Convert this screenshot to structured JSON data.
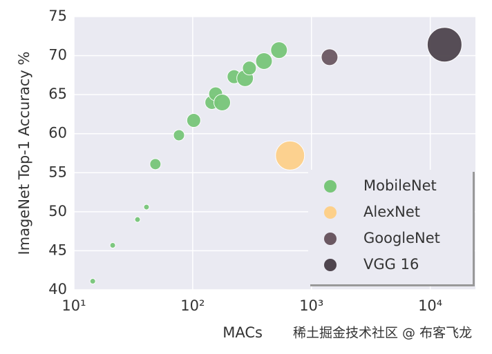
{
  "chart_data": {
    "type": "scatter",
    "x_label": "MACs",
    "y_label": "ImageNet Top-1 Accuracy %",
    "watermark": "稀土掘金技术社区 @ 布客飞龙",
    "log_x": true,
    "grid": true,
    "legend": "lower right",
    "xlim": [
      10,
      24000
    ],
    "ylim": [
      40,
      75
    ],
    "xticks": [
      {
        "value": 10,
        "label": "10¹"
      },
      {
        "value": 100,
        "label": "10²"
      },
      {
        "value": 1000,
        "label": "10³"
      },
      {
        "value": 10000,
        "label": "10⁴"
      }
    ],
    "yticks": [
      40,
      45,
      50,
      55,
      60,
      65,
      70,
      75
    ],
    "series": [
      {
        "name": "MobileNet",
        "color": "#78c679",
        "x": [
          14.4,
          21.2,
          34.3,
          40.8,
          48.5,
          76.6,
          102,
          145,
          156,
          177,
          223,
          276,
          300,
          398,
          533
        ],
        "values": [
          41.1,
          45.7,
          49.0,
          50.6,
          56.1,
          59.8,
          61.7,
          64.0,
          65.1,
          64.0,
          67.3,
          67.1,
          68.4,
          69.3,
          70.7
        ],
        "sizes": [
          4,
          4,
          4,
          4,
          8,
          8,
          10,
          10,
          10,
          12,
          10,
          12,
          10,
          12,
          12
        ]
      },
      {
        "name": "AlexNet",
        "color": "#fdd08a",
        "x": [
          660
        ],
        "values": [
          57.2
        ],
        "sizes": [
          21
        ]
      },
      {
        "name": "GoogleNet",
        "color": "#6b5862",
        "x": [
          1420
        ],
        "values": [
          69.8
        ],
        "sizes": [
          12
        ]
      },
      {
        "name": "VGG 16",
        "color": "#4f454e",
        "x": [
          13200
        ],
        "values": [
          71.4
        ],
        "sizes": [
          25
        ]
      }
    ]
  }
}
